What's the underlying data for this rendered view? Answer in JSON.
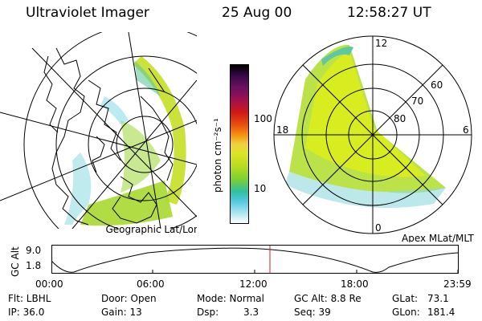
{
  "header": {
    "instrument": "Ultraviolet Imager",
    "date": "25 Aug 00",
    "time": "12:58:27 UT"
  },
  "colorbar": {
    "unit_label": "photon cm⁻²s⁻¹",
    "ticks": [
      "100",
      "10"
    ],
    "colors": [
      "#000000",
      "#3a0848",
      "#5a1060",
      "#8a1060",
      "#c01010",
      "#e04010",
      "#f08a10",
      "#f5b020",
      "#f0e050",
      "#c8e020",
      "#a0d820",
      "#60c840",
      "#20c0a0",
      "#30c0d0",
      "#70d8e0",
      "#b0e8f0",
      "#ffffff"
    ]
  },
  "geo_panel": {
    "caption": "Geographic Lat/Lon"
  },
  "mag_panel": {
    "caption": "Apex MLat/MLT",
    "mlt_labels": {
      "top": "12",
      "left": "18",
      "right": "6",
      "bottom": "0"
    },
    "lat_labels": [
      "60",
      "70",
      "80"
    ]
  },
  "orbit_plot": {
    "ylabel": "GC Alt",
    "yticks": [
      "9.0",
      "1.8"
    ],
    "xticks": [
      "00:00",
      "06:00",
      "12:00",
      "18:00",
      "23:59"
    ],
    "current_marker_color": "#d02020"
  },
  "footer": {
    "flt": "Flt: LBHL",
    "ip": "IP: 36.0",
    "door": "Door: Open",
    "gain": "Gain: 13",
    "mode_label": "Mode: Normal",
    "dsp_label": "Dsp:",
    "dsp_value": "3.3",
    "gc_alt": "GC Alt: 8.8 Re",
    "seq": "Seq: 39",
    "glat_label": "GLat:",
    "glat_value": "73.1",
    "glon_label": "GLon:",
    "glon_value": "181.4"
  }
}
